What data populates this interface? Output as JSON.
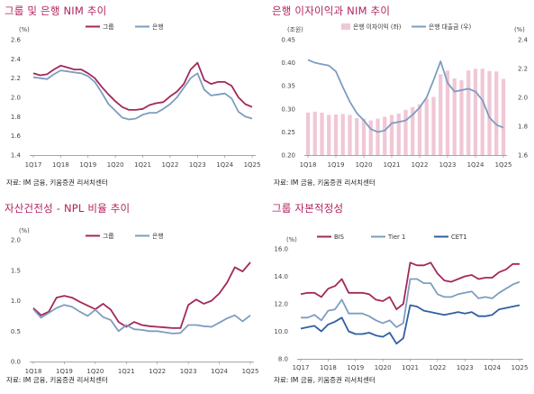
{
  "colors": {
    "group": "#a3285a",
    "bank": "#7d9dc0",
    "bar": "#f0c7d6",
    "bis": "#a3285a",
    "tier1": "#7d9dc0",
    "cet1": "#2f5fa0"
  },
  "source": "자료: IM 금융, 키움증권 리서치센터",
  "chart_data": [
    {
      "type": "line",
      "title": "그룹 및 은행 NIM 추이",
      "unit_label": "(%)",
      "x": [
        "1Q17",
        "2Q17",
        "3Q17",
        "4Q17",
        "1Q18",
        "2Q18",
        "3Q18",
        "4Q18",
        "1Q19",
        "2Q19",
        "3Q19",
        "4Q19",
        "1Q20",
        "2Q20",
        "3Q20",
        "4Q20",
        "1Q21",
        "2Q21",
        "3Q21",
        "4Q21",
        "1Q22",
        "2Q22",
        "3Q22",
        "4Q22",
        "1Q23",
        "2Q23",
        "3Q23",
        "4Q23",
        "1Q24",
        "2Q24",
        "3Q24",
        "4Q24",
        "1Q25"
      ],
      "xticks": [
        "1Q17",
        "1Q18",
        "1Q19",
        "1Q20",
        "1Q21",
        "1Q22",
        "1Q23",
        "1Q24",
        "1Q25"
      ],
      "ylim": [
        1.4,
        2.6
      ],
      "yticks": [
        1.4,
        1.6,
        1.8,
        2.0,
        2.2,
        2.4,
        2.6
      ],
      "yfmt": 1,
      "series": [
        {
          "name": "그룹",
          "color_key": "group",
          "values": [
            2.25,
            2.23,
            2.24,
            2.29,
            2.33,
            2.31,
            2.29,
            2.29,
            2.25,
            2.2,
            2.11,
            2.03,
            1.96,
            1.9,
            1.87,
            1.87,
            1.88,
            1.92,
            1.94,
            1.95,
            2.01,
            2.06,
            2.14,
            2.29,
            2.36,
            2.18,
            2.14,
            2.16,
            2.16,
            2.12,
            2.0,
            1.93,
            1.9
          ]
        },
        {
          "name": "은행",
          "color_key": "bank",
          "values": [
            2.21,
            2.2,
            2.19,
            2.24,
            2.28,
            2.27,
            2.26,
            2.25,
            2.22,
            2.16,
            2.05,
            1.93,
            1.86,
            1.79,
            1.77,
            1.78,
            1.82,
            1.84,
            1.84,
            1.88,
            1.93,
            2.0,
            2.1,
            2.2,
            2.25,
            2.08,
            2.02,
            2.03,
            2.04,
            1.99,
            1.85,
            1.8,
            1.78
          ]
        }
      ]
    },
    {
      "type": "bar+line",
      "title": "은행 이자이익과 NIM 추이",
      "unit_label": "(조원)",
      "unit_label_right": "(%)",
      "x": [
        "1Q18",
        "2Q18",
        "3Q18",
        "4Q18",
        "1Q19",
        "2Q19",
        "3Q19",
        "4Q19",
        "1Q20",
        "2Q20",
        "3Q20",
        "4Q20",
        "1Q21",
        "2Q21",
        "3Q21",
        "4Q21",
        "1Q22",
        "2Q22",
        "3Q22",
        "4Q22",
        "1Q23",
        "2Q23",
        "3Q23",
        "4Q23",
        "1Q24",
        "2Q24",
        "3Q24",
        "4Q24",
        "1Q25"
      ],
      "xticks": [
        "1Q18",
        "1Q19",
        "1Q20",
        "1Q21",
        "1Q22",
        "1Q23",
        "1Q24",
        "1Q25"
      ],
      "ylim": [
        0.2,
        0.45
      ],
      "yticks": [
        0.2,
        0.25,
        0.3,
        0.35,
        0.4,
        0.45
      ],
      "yfmt": 2,
      "ylim_right": [
        1.6,
        2.4
      ],
      "yticks_right": [
        1.6,
        1.8,
        2.0,
        2.2,
        2.4
      ],
      "yfmt_right": 1,
      "bar_series": {
        "name": "은행 이자이익 (좌)",
        "color_key": "bar",
        "values": [
          0.292,
          0.294,
          0.292,
          0.287,
          0.288,
          0.289,
          0.287,
          0.28,
          0.279,
          0.275,
          0.279,
          0.283,
          0.287,
          0.29,
          0.298,
          0.304,
          0.31,
          0.322,
          0.326,
          0.375,
          0.383,
          0.366,
          0.362,
          0.383,
          0.387,
          0.387,
          0.382,
          0.381,
          0.365
        ]
      },
      "line_series": {
        "name": "은행 대출금 (우)",
        "color_key": "bank",
        "values": [
          2.26,
          2.24,
          2.23,
          2.22,
          2.18,
          2.07,
          1.97,
          1.89,
          1.84,
          1.78,
          1.76,
          1.77,
          1.82,
          1.83,
          1.84,
          1.88,
          1.93,
          2.0,
          2.12,
          2.25,
          2.1,
          2.04,
          2.05,
          2.06,
          2.04,
          1.98,
          1.86,
          1.81,
          1.79
        ]
      }
    },
    {
      "type": "line",
      "title": "자산건전성 - NPL 비율 추이",
      "unit_label": "(%)",
      "x": [
        "1Q18",
        "2Q18",
        "3Q18",
        "4Q18",
        "1Q19",
        "2Q19",
        "3Q19",
        "4Q19",
        "1Q20",
        "2Q20",
        "3Q20",
        "4Q20",
        "1Q21",
        "2Q21",
        "3Q21",
        "4Q21",
        "1Q22",
        "2Q22",
        "3Q22",
        "4Q22",
        "1Q23",
        "2Q23",
        "3Q23",
        "4Q23",
        "1Q24",
        "2Q24",
        "3Q24",
        "4Q24",
        "1Q25"
      ],
      "xticks": [
        "1Q18",
        "1Q19",
        "1Q20",
        "1Q21",
        "1Q22",
        "1Q23",
        "1Q24",
        "1Q25"
      ],
      "ylim": [
        0.0,
        2.0
      ],
      "yticks": [
        0.0,
        0.5,
        1.0,
        1.5,
        2.0
      ],
      "yfmt": 1,
      "series": [
        {
          "name": "그룹",
          "color_key": "group",
          "values": [
            0.88,
            0.76,
            0.82,
            1.05,
            1.08,
            1.05,
            0.98,
            0.92,
            0.86,
            0.95,
            0.85,
            0.65,
            0.57,
            0.65,
            0.6,
            0.58,
            0.57,
            0.56,
            0.55,
            0.55,
            0.93,
            1.02,
            0.95,
            1.0,
            1.12,
            1.3,
            1.55,
            1.48,
            1.63
          ]
        },
        {
          "name": "은행",
          "color_key": "bank",
          "values": [
            0.86,
            0.72,
            0.8,
            0.88,
            0.93,
            0.9,
            0.82,
            0.75,
            0.85,
            0.73,
            0.68,
            0.5,
            0.6,
            0.53,
            0.52,
            0.5,
            0.5,
            0.48,
            0.46,
            0.47,
            0.6,
            0.6,
            0.58,
            0.57,
            0.64,
            0.71,
            0.76,
            0.66,
            0.76
          ]
        }
      ]
    },
    {
      "type": "line",
      "title": "그룹 자본적정성",
      "unit_label": "(%)",
      "x": [
        "1Q17",
        "2Q17",
        "3Q17",
        "4Q17",
        "1Q18",
        "2Q18",
        "3Q18",
        "4Q18",
        "1Q19",
        "2Q19",
        "3Q19",
        "4Q19",
        "1Q20",
        "2Q20",
        "3Q20",
        "4Q20",
        "1Q21",
        "2Q21",
        "3Q21",
        "4Q21",
        "1Q22",
        "2Q22",
        "3Q22",
        "4Q22",
        "1Q23",
        "2Q23",
        "3Q23",
        "4Q23",
        "1Q24",
        "2Q24",
        "3Q24",
        "4Q24",
        "1Q25"
      ],
      "xticks": [
        "1Q17",
        "1Q18",
        "1Q19",
        "1Q20",
        "1Q21",
        "1Q22",
        "1Q23",
        "1Q24",
        "1Q25"
      ],
      "ylim": [
        8.0,
        16.0
      ],
      "yticks": [
        8.0,
        10.0,
        12.0,
        14.0,
        16.0
      ],
      "yfmt": 1,
      "series": [
        {
          "name": "BIS",
          "color_key": "bis",
          "values": [
            12.7,
            12.8,
            12.8,
            12.5,
            13.1,
            13.3,
            13.8,
            12.8,
            12.8,
            12.8,
            12.7,
            12.3,
            12.2,
            12.5,
            11.6,
            12.0,
            15.0,
            14.8,
            14.8,
            15.0,
            14.2,
            13.7,
            13.6,
            13.8,
            14.0,
            14.1,
            13.8,
            13.9,
            13.9,
            14.3,
            14.5,
            14.9,
            14.9
          ]
        },
        {
          "name": "Tier 1",
          "color_key": "tier1",
          "values": [
            11.0,
            11.0,
            11.2,
            10.8,
            11.5,
            11.6,
            12.3,
            11.3,
            11.3,
            11.3,
            11.1,
            10.8,
            10.6,
            10.8,
            10.3,
            10.6,
            13.8,
            13.8,
            13.5,
            13.5,
            12.7,
            12.5,
            12.5,
            12.7,
            12.8,
            12.9,
            12.4,
            12.5,
            12.4,
            12.8,
            13.1,
            13.4,
            13.6
          ]
        },
        {
          "name": "CET1",
          "color_key": "cet1",
          "values": [
            10.2,
            10.3,
            10.4,
            10.0,
            10.5,
            10.7,
            11.0,
            10.0,
            9.8,
            9.8,
            9.9,
            9.7,
            9.6,
            9.9,
            9.1,
            9.5,
            11.9,
            11.8,
            11.5,
            11.4,
            11.3,
            11.2,
            11.3,
            11.4,
            11.3,
            11.4,
            11.1,
            11.1,
            11.2,
            11.6,
            11.7,
            11.8,
            11.9
          ]
        }
      ]
    }
  ]
}
